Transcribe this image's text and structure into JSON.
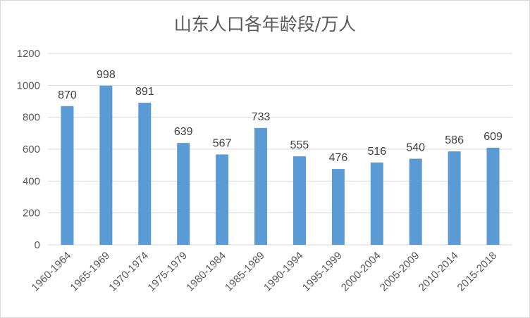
{
  "chart_data": {
    "type": "bar",
    "title": "山东人口各年龄段/万人",
    "categories": [
      "1960-1964",
      "1965-1969",
      "1970-1974",
      "1975-1979",
      "1980-1984",
      "1985-1989",
      "1990-1994",
      "1995-1999",
      "2000-2004",
      "2005-2009",
      "2010-2014",
      "2015-2018"
    ],
    "values": [
      870,
      998,
      891,
      639,
      567,
      733,
      555,
      476,
      516,
      540,
      586,
      609
    ],
    "yticks": [
      0,
      200,
      400,
      600,
      800,
      1000,
      1200
    ],
    "ylim": [
      0,
      1200
    ],
    "grid": true,
    "legend": "none",
    "bar_color": "#5b9bd5",
    "grid_color": "#d9d9d9"
  }
}
